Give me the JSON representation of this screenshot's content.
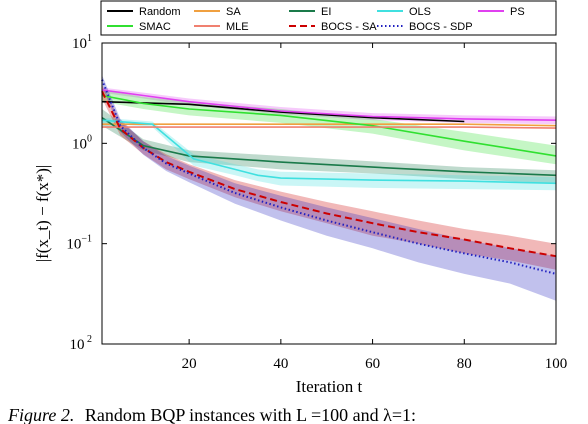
{
  "caption": {
    "label": "Figure 2.",
    "text": "Random BQP instances with L =100 and λ=1:"
  },
  "chart_data": {
    "type": "line",
    "xlabel": "Iteration t",
    "ylabel": "|f(x_t) − f(x*)|",
    "xlim": [
      1,
      100
    ],
    "ylim": [
      0.01,
      10
    ],
    "yscale": "log",
    "xticks": [
      20,
      40,
      60,
      80,
      100
    ],
    "xtick_labels": [
      "20",
      "40",
      "60",
      "80",
      "100"
    ],
    "yticks": [
      0.01,
      0.1,
      1,
      10
    ],
    "ytick_labels": [
      {
        "base": "10",
        "exp": " 2"
      },
      {
        "base": "10",
        "exp": "−1"
      },
      {
        "base": "10",
        "exp": "0"
      },
      {
        "base": "10",
        "exp": "1"
      }
    ],
    "grid": false,
    "legend": {
      "location": "top",
      "columns": 5
    },
    "series": [
      {
        "name": "Random",
        "color": "#000000",
        "dash": "solid",
        "x": [
          1,
          20,
          40,
          60,
          80
        ],
        "y": [
          2.6,
          2.45,
          2.05,
          1.8,
          1.65
        ]
      },
      {
        "name": "SA",
        "color": "#f0a040",
        "dash": "solid",
        "x": [
          1,
          20,
          40,
          60,
          80,
          100
        ],
        "y": [
          1.55,
          1.55,
          1.55,
          1.55,
          1.55,
          1.5
        ]
      },
      {
        "name": "EI",
        "color": "#1a7a4a",
        "dash": "solid",
        "x": [
          1,
          10,
          20,
          30,
          40,
          60,
          80,
          100
        ],
        "y": [
          1.8,
          0.95,
          0.75,
          0.7,
          0.65,
          0.58,
          0.52,
          0.48
        ],
        "band": {
          "upper": [
            2.2,
            1.1,
            0.85,
            0.8,
            0.75,
            0.66,
            0.58,
            0.54
          ],
          "lower": [
            1.5,
            0.85,
            0.65,
            0.6,
            0.55,
            0.5,
            0.44,
            0.4
          ]
        }
      },
      {
        "name": "OLS",
        "color": "#40e0e0",
        "dash": "solid",
        "x": [
          1,
          12,
          21,
          30,
          35,
          40,
          60,
          80,
          100
        ],
        "y": [
          1.7,
          1.55,
          0.7,
          0.55,
          0.48,
          0.45,
          0.43,
          0.42,
          0.4
        ],
        "band": {
          "upper": [
            1.8,
            1.65,
            0.78,
            0.62,
            0.55,
            0.52,
            0.5,
            0.48,
            0.46
          ],
          "lower": [
            1.6,
            1.45,
            0.6,
            0.48,
            0.42,
            0.38,
            0.36,
            0.35,
            0.34
          ]
        }
      },
      {
        "name": "PS",
        "color": "#e040f0",
        "dash": "solid",
        "x": [
          1,
          10,
          20,
          40,
          60,
          80,
          100
        ],
        "y": [
          3.4,
          3.0,
          2.6,
          2.1,
          1.85,
          1.75,
          1.7
        ],
        "band": {
          "upper": [
            3.6,
            3.2,
            2.8,
            2.3,
            2.0,
            1.9,
            1.85
          ],
          "lower": [
            3.2,
            2.8,
            2.4,
            1.95,
            1.7,
            1.6,
            1.55
          ]
        }
      },
      {
        "name": "SMAC",
        "color": "#30e030",
        "dash": "solid",
        "x": [
          1,
          10,
          20,
          40,
          60,
          80,
          100
        ],
        "y": [
          3.0,
          2.5,
          2.2,
          1.9,
          1.5,
          1.05,
          0.75
        ],
        "band": {
          "upper": [
            3.4,
            2.9,
            2.6,
            2.2,
            1.75,
            1.3,
            0.95
          ],
          "lower": [
            2.6,
            2.2,
            1.9,
            1.6,
            1.25,
            0.85,
            0.62
          ]
        }
      },
      {
        "name": "MLE",
        "color": "#f08070",
        "dash": "solid",
        "x": [
          1,
          20,
          40,
          60,
          80,
          100
        ],
        "y": [
          1.45,
          1.45,
          1.45,
          1.45,
          1.45,
          1.42
        ]
      },
      {
        "name": "BOCS - SA",
        "color": "#cc0000",
        "dash": "dashed",
        "x": [
          1,
          5,
          10,
          15,
          20,
          30,
          40,
          50,
          60,
          70,
          80,
          90,
          100
        ],
        "y": [
          3.3,
          1.4,
          0.9,
          0.65,
          0.52,
          0.35,
          0.26,
          0.2,
          0.16,
          0.13,
          0.11,
          0.09,
          0.075
        ],
        "band": {
          "upper": [
            3.8,
            1.7,
            1.05,
            0.78,
            0.62,
            0.43,
            0.33,
            0.26,
            0.21,
            0.17,
            0.14,
            0.12,
            0.1
          ],
          "lower": [
            2.8,
            1.2,
            0.78,
            0.55,
            0.44,
            0.29,
            0.21,
            0.16,
            0.12,
            0.1,
            0.08,
            0.068,
            0.055
          ]
        }
      },
      {
        "name": "BOCS - SDP",
        "color": "#2020c0",
        "dash": "dotted",
        "x": [
          1,
          5,
          10,
          15,
          20,
          30,
          40,
          50,
          60,
          70,
          80,
          90,
          100
        ],
        "y": [
          4.3,
          1.5,
          0.9,
          0.63,
          0.5,
          0.32,
          0.23,
          0.17,
          0.13,
          0.1,
          0.08,
          0.065,
          0.05
        ],
        "band": {
          "upper": [
            4.8,
            1.75,
            1.05,
            0.75,
            0.6,
            0.4,
            0.3,
            0.23,
            0.18,
            0.14,
            0.11,
            0.09,
            0.075
          ],
          "lower": [
            3.8,
            1.3,
            0.77,
            0.53,
            0.41,
            0.25,
            0.17,
            0.12,
            0.09,
            0.065,
            0.05,
            0.04,
            0.027
          ]
        }
      }
    ]
  }
}
